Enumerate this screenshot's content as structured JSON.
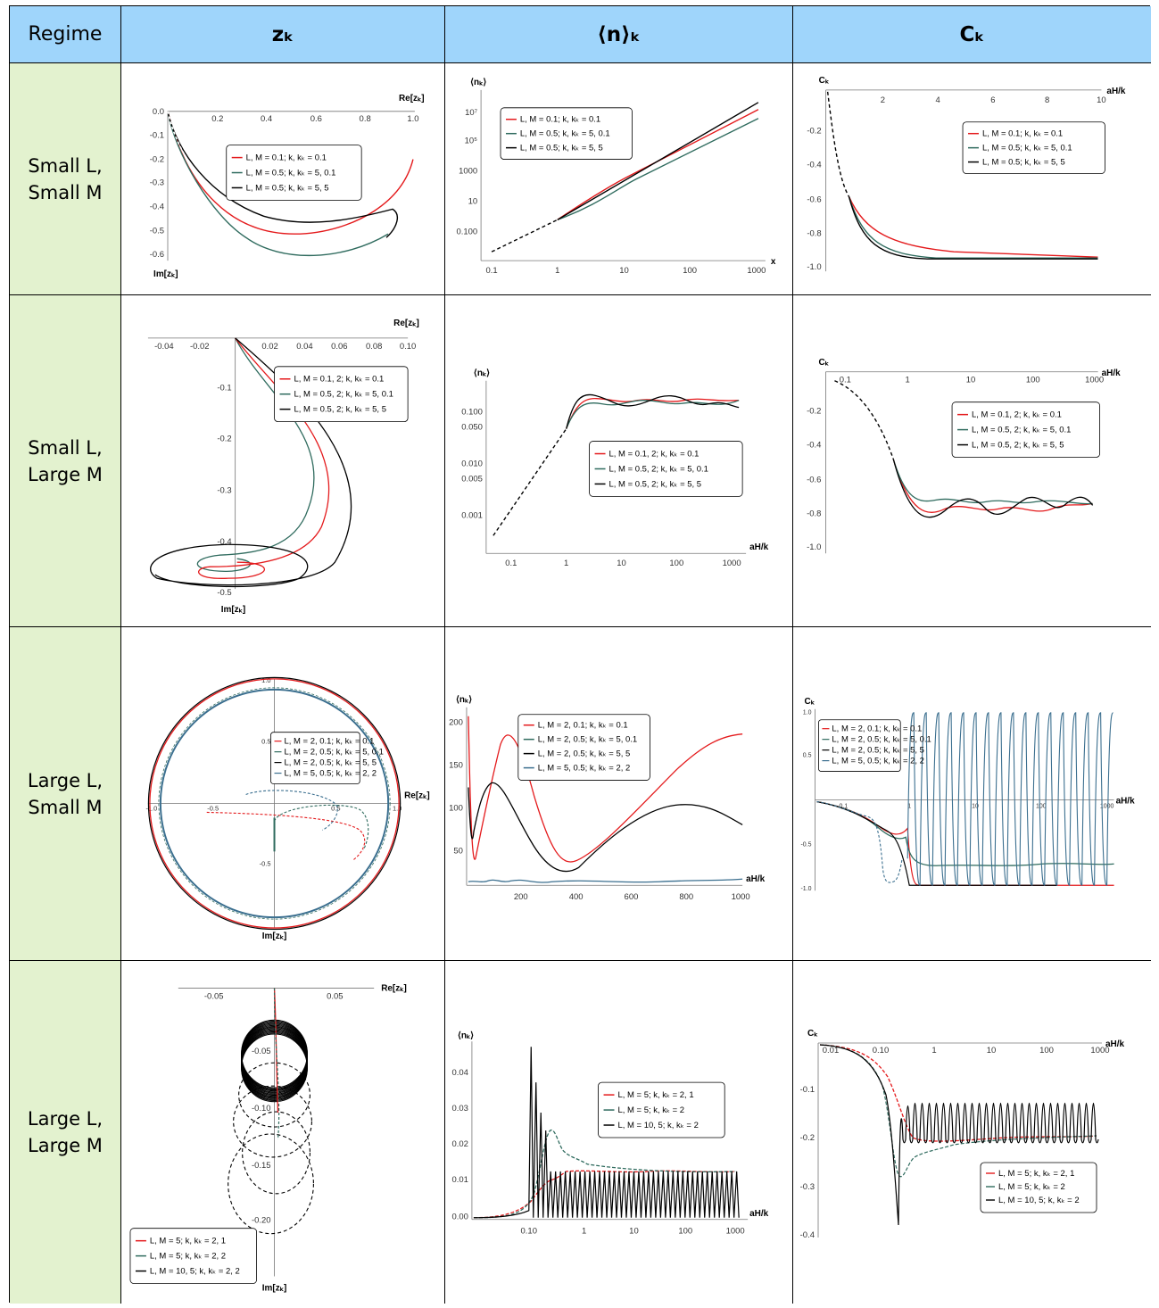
{
  "header": {
    "regime": "Regime",
    "zk": "zₖ",
    "nk": "⟨n⟩ₖ",
    "ck": "Cₖ"
  },
  "colors": {
    "header_bg": "#9fd5fb",
    "regime_bg": "#e3f2cf",
    "red": "#e41a1c",
    "green": "#2f6b5e",
    "black": "#000000",
    "blue": "#3b6f8f"
  },
  "rows": [
    {
      "regime": [
        "Small L,",
        "Small M"
      ],
      "z": {
        "xlabel": "Re[zₖ]",
        "ylabel": "Im[zₖ]",
        "xticks": [
          "0.2",
          "0.4",
          "0.6",
          "0.8",
          "1.0"
        ],
        "yticks": [
          "0.0",
          "-0.1",
          "-0.2",
          "-0.3",
          "-0.4",
          "-0.5",
          "-0.6"
        ],
        "legend": [
          "L, M = 0.1; k, kₖ = 0.1",
          "L, M = 0.5; k, kₖ = 5, 0.1",
          "L, M = 0.5; k, kₖ = 5, 5"
        ]
      },
      "n": {
        "xlabel": "x",
        "ylabel": "⟨nₖ⟩",
        "xticks": [
          "0.1",
          "1",
          "10",
          "100",
          "1000"
        ],
        "yticks": [
          "10⁷",
          "10⁵",
          "1000",
          "10",
          "0.100"
        ],
        "legend": [
          "L, M = 0.1; k, kₖ = 0.1",
          "L, M = 0.5; k, kₖ = 5, 0.1",
          "L, M = 0.5; k, kₖ = 5, 5"
        ]
      },
      "c": {
        "xlabel": "aH/k",
        "ylabel": "Cₖ",
        "xticks": [
          "2",
          "4",
          "6",
          "8",
          "10"
        ],
        "yticks": [
          "-0.2",
          "-0.4",
          "-0.6",
          "-0.8",
          "-1.0"
        ],
        "legend": [
          "L, M = 0.1; k, kₖ = 0.1",
          "L, M = 0.5; k, kₖ = 5, 0.1",
          "L, M = 0.5; k, kₖ = 5, 5"
        ]
      }
    },
    {
      "regime": [
        "Small L,",
        "Large M"
      ],
      "z": {
        "xlabel": "Re[zₖ]",
        "ylabel": "Im[zₖ]",
        "xticks": [
          "-0.04",
          "-0.02",
          "0.02",
          "0.04",
          "0.06",
          "0.08",
          "0.10"
        ],
        "yticks": [
          "-0.1",
          "-0.2",
          "-0.3",
          "-0.4",
          "-0.5"
        ],
        "legend": [
          "L, M = 0.1, 2; k, kₖ = 0.1",
          "L, M = 0.5, 2; k, kₖ = 5, 0.1",
          "L, M = 0.5, 2; k, kₖ = 5, 5"
        ]
      },
      "n": {
        "xlabel": "aH/k",
        "ylabel": "⟨nₖ⟩",
        "xticks": [
          "0.1",
          "1",
          "10",
          "100",
          "1000"
        ],
        "yticks": [
          "0.100",
          "0.050",
          "0.010",
          "0.005",
          "0.001"
        ],
        "legend": [
          "L, M = 0.1, 2; k, kₖ = 0.1",
          "L, M = 0.5, 2; k, kₖ = 5, 0.1",
          "L, M = 0.5, 2; k, kₖ = 5, 5"
        ]
      },
      "c": {
        "xlabel": "aH/k",
        "ylabel": "Cₖ",
        "xticks": [
          "0.1",
          "1",
          "10",
          "100",
          "1000"
        ],
        "yticks": [
          "-0.2",
          "-0.4",
          "-0.6",
          "-0.8",
          "-1.0"
        ],
        "legend": [
          "L, M = 0.1, 2; k, kₖ = 0.1",
          "L, M = 0.5, 2; k, kₖ = 5, 0.1",
          "L, M = 0.5, 2; k, kₖ = 5, 5"
        ]
      }
    },
    {
      "regime": [
        "Large L,",
        "Small M"
      ],
      "z": {
        "xlabel": "Re[zₖ]",
        "ylabel": "Im[zₖ]",
        "xticks": [
          "-1.0",
          "-0.5",
          "0.5",
          "1.0"
        ],
        "yticks": [
          "1.0",
          "0.5",
          "-0.5"
        ],
        "legend": [
          "L, M = 2, 0.1; k, kₖ = 0.1",
          "L, M = 2, 0.5; k, kₖ = 5, 0.1",
          "L, M = 2, 0.5; k, kₖ = 5, 5",
          "L, M = 5, 0.5; k, kₖ = 2, 2"
        ]
      },
      "n": {
        "xlabel": "aH/k",
        "ylabel": "⟨nₖ⟩",
        "xticks": [
          "200",
          "400",
          "600",
          "800",
          "1000"
        ],
        "yticks": [
          "200",
          "150",
          "100",
          "50"
        ],
        "legend": [
          "L, M = 2, 0.1; k, kₖ = 0.1",
          "L, M = 2, 0.5; k, kₖ = 5, 0.1",
          "L, M = 2, 0.5; k, kₖ = 5, 5",
          "L, M = 5, 0.5; k, kₖ = 2, 2"
        ]
      },
      "c": {
        "xlabel": "aH/k",
        "ylabel": "Cₖ",
        "xticks": [
          "0.1",
          "1",
          "10",
          "100",
          "1000"
        ],
        "yticks": [
          "1.0",
          "0.5",
          "-0.5",
          "-1.0"
        ],
        "legend": [
          "L, M = 2, 0.1; k, kₖ = 0.1",
          "L, M = 2, 0.5; k, kₖ = 5, 0.1",
          "L, M = 2, 0.5; k, kₖ = 5, 5",
          "L, M = 5, 0.5; k, kₖ = 2, 2"
        ]
      }
    },
    {
      "regime": [
        "Large L,",
        "Large M"
      ],
      "z": {
        "xlabel": "Re[zₖ]",
        "ylabel": "Im[zₖ]",
        "xticks": [
          "-0.05",
          "0.05"
        ],
        "yticks": [
          "-0.05",
          "-0.10",
          "-0.15",
          "-0.20"
        ],
        "legend": [
          "L, M = 5; k, kₖ = 2, 1",
          "L, M = 5; k, kₖ = 2, 2",
          "L, M = 10, 5; k, kₖ = 2, 2"
        ]
      },
      "n": {
        "xlabel": "aH/k",
        "ylabel": "⟨nₖ⟩",
        "xticks": [
          "0.10",
          "1",
          "10",
          "100",
          "1000"
        ],
        "yticks": [
          "0.04",
          "0.03",
          "0.02",
          "0.01",
          "0.00"
        ],
        "legend": [
          "L, M = 5; k, kₖ = 2, 1",
          "L, M = 5; k, kₖ = 2",
          "L, M = 10, 5; k, kₖ = 2"
        ]
      },
      "c": {
        "xlabel": "aH/k",
        "ylabel": "Cₖ",
        "xticks": [
          "0.01",
          "0.10",
          "1",
          "10",
          "100",
          "1000"
        ],
        "yticks": [
          "-0.1",
          "-0.2",
          "-0.3",
          "-0.4"
        ],
        "legend": [
          "L, M = 5; k, kₖ = 2, 1",
          "L, M = 5; k, kₖ = 2",
          "L, M = 10, 5; k, kₖ = 2"
        ]
      }
    }
  ]
}
